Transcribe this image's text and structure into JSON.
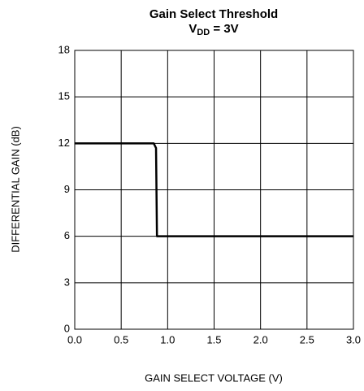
{
  "chart_data": {
    "type": "line",
    "title": "Gain Select Threshold",
    "subtitle": [
      "V",
      "DD",
      " = 3V"
    ],
    "xlabel": "GAIN SELECT VOLTAGE (V)",
    "ylabel": "DIFFERENTIAL GAIN (dB)",
    "x": [
      0,
      0.85,
      0.875,
      0.885,
      3.0
    ],
    "values": [
      12,
      12,
      11.7,
      6,
      6
    ],
    "color": "#000000",
    "xlim": [
      0,
      3
    ],
    "ylim": [
      0,
      18
    ],
    "xticks": [
      {
        "value": 0,
        "label": "0.0"
      },
      0.5,
      {
        "value": 1,
        "label": "1.0"
      },
      1.5,
      {
        "value": 2,
        "label": "2.0"
      },
      2.5,
      {
        "value": 3,
        "label": "3.0"
      }
    ],
    "yticks": [
      0,
      3,
      6,
      9,
      12,
      15,
      18
    ],
    "grid": true
  }
}
